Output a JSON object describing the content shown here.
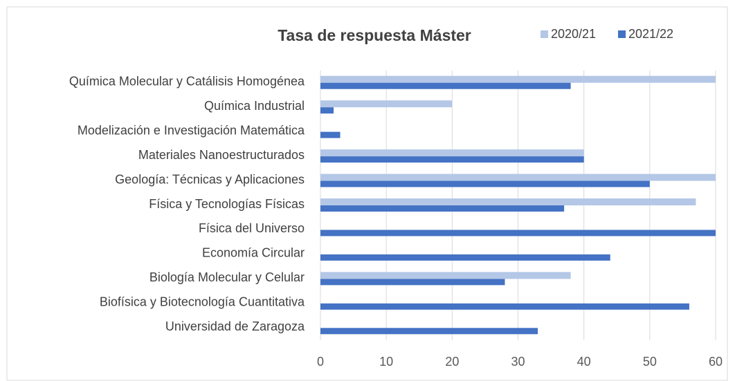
{
  "chart_data": {
    "type": "hbar",
    "title": "Tasa de respuesta Máster",
    "categories": [
      "Química Molecular y Catálisis Homogénea",
      "Química Industrial",
      "Modelización e Investigación Matemática",
      "Materiales Nanoestructurados",
      "Geología: Técnicas y Aplicaciones",
      "Física y Tecnologías Físicas",
      "Física del Universo",
      "Economía Circular",
      "Biología Molecular y Celular",
      "Biofísica y Biotecnología Cuantitativa",
      "Universidad de Zaragoza"
    ],
    "series": [
      {
        "name": "2020/21",
        "color": "#b4c7e7",
        "values": [
          60,
          20,
          null,
          40,
          60,
          57,
          null,
          null,
          38,
          null,
          null
        ]
      },
      {
        "name": "2021/22",
        "color": "#4472c4",
        "values": [
          38,
          2,
          3,
          40,
          50,
          37,
          60,
          44,
          28,
          56,
          33
        ]
      }
    ],
    "xlim": [
      0,
      60
    ],
    "xticks": [
      0,
      10,
      20,
      30,
      40,
      50,
      60
    ],
    "grid": true,
    "legend": "top"
  }
}
